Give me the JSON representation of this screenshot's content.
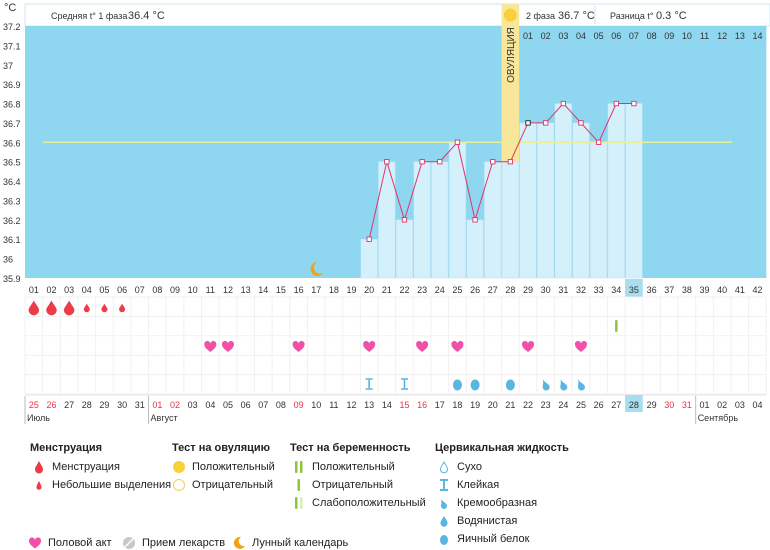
{
  "header": {
    "unit": "°C",
    "phase1_label": "Средняя t° 1 фаза",
    "phase1_value": "36.4 °C",
    "phase2_label": "2 фаза",
    "phase2_value": "36.7 °C",
    "diff_label": "Разница t°",
    "diff_value": "0.3 °C"
  },
  "ovulation_label": "ОВУЛЯЦИЯ",
  "ovulation_day": 28,
  "chart_data": {
    "type": "line",
    "ylim": [
      35.9,
      37.2
    ],
    "yticks": [
      "37.2",
      "37.1",
      "37",
      "36.9",
      "36.8",
      "36.7",
      "36.6",
      "36.5",
      "36.4",
      "36.3",
      "36.2",
      "36.1",
      "36",
      "35.9"
    ],
    "baseline": 36.6,
    "x_cycle_days": [
      "01",
      "02",
      "03",
      "04",
      "05",
      "06",
      "07",
      "08",
      "09",
      "10",
      "11",
      "12",
      "13",
      "14",
      "15",
      "16",
      "17",
      "18",
      "19",
      "20",
      "21",
      "22",
      "23",
      "24",
      "25",
      "26",
      "27",
      "28",
      "29",
      "30",
      "31",
      "32",
      "33",
      "34",
      "35",
      "36",
      "37",
      "38",
      "39",
      "40",
      "41",
      "42"
    ],
    "phase2_days": [
      "01",
      "02",
      "03",
      "04",
      "05",
      "06",
      "07",
      "08",
      "09",
      "10",
      "11",
      "12",
      "13",
      "14"
    ],
    "current_day": "35",
    "temperatures": [
      {
        "day": 20,
        "value": 36.1
      },
      {
        "day": 21,
        "value": 36.5
      },
      {
        "day": 22,
        "value": 36.2
      },
      {
        "day": 23,
        "value": 36.5
      },
      {
        "day": 24,
        "value": 36.5
      },
      {
        "day": 25,
        "value": 36.6
      },
      {
        "day": 26,
        "value": 36.2
      },
      {
        "day": 27,
        "value": 36.5
      },
      {
        "day": 28,
        "value": 36.5
      },
      {
        "day": 29,
        "value": 36.7
      },
      {
        "day": 30,
        "value": 36.7
      },
      {
        "day": 31,
        "value": 36.8
      },
      {
        "day": 32,
        "value": 36.7
      },
      {
        "day": 33,
        "value": 36.6
      },
      {
        "day": 34,
        "value": 36.8
      },
      {
        "day": 35,
        "value": 36.8
      }
    ],
    "moon_day": 17
  },
  "calendar": {
    "dates": [
      "25",
      "26",
      "27",
      "28",
      "29",
      "30",
      "31",
      "01",
      "02",
      "03",
      "04",
      "05",
      "06",
      "07",
      "08",
      "09",
      "10",
      "11",
      "12",
      "13",
      "14",
      "15",
      "16",
      "17",
      "18",
      "19",
      "20",
      "21",
      "22",
      "23",
      "24",
      "25",
      "26",
      "27",
      "28",
      "29",
      "30",
      "31",
      "01",
      "02",
      "03",
      "04"
    ],
    "red_dates": [
      1,
      2,
      8,
      9,
      16,
      22,
      23,
      37,
      38
    ],
    "today_index": 35,
    "months": [
      {
        "label": "Июль",
        "day": 1
      },
      {
        "label": "Август",
        "day": 8
      },
      {
        "label": "Сентябрь",
        "day": 39
      }
    ]
  },
  "symptoms": {
    "menstruation_heavy": [
      1,
      2,
      3
    ],
    "menstruation_light": [
      4,
      5,
      6
    ],
    "pregnancy_test_positive": [
      34
    ],
    "intercourse": [
      11,
      12,
      16,
      20,
      23,
      25,
      29,
      32
    ],
    "fluid_sticky": [
      20,
      22
    ],
    "fluid_eggwhite": [
      25,
      26,
      28
    ],
    "fluid_creamy": [
      30,
      31,
      32
    ]
  },
  "legend": {
    "menstruation_title": "Менструация",
    "menstruation": "Менструация",
    "light_spotting": "Небольшие выделения",
    "ovulation_title": "Тест на овуляцию",
    "ov_positive": "Положительный",
    "ov_negative": "Отрицательный",
    "pregnancy_title": "Тест на беременность",
    "pr_positive": "Положительный",
    "pr_negative": "Отрицательный",
    "pr_weak": "Слабоположительный",
    "fluid_title": "Цервикальная жидкость",
    "fl_dry": "Сухо",
    "fl_sticky": "Клейкая",
    "fl_creamy": "Кремообразная",
    "fl_watery": "Водянистая",
    "fl_eggwhite": "Яичный белок",
    "intercourse": "Половой акт",
    "medication": "Прием лекарств",
    "lunar": "Лунный календарь"
  },
  "colors": {
    "sky": "#8fd6f0",
    "bar": "#d4f0fb",
    "ovulation": "#f8e79a",
    "line": "#e0336a",
    "baseline": "#e8ef9a",
    "heart": "#f050a8",
    "drop": "#ee3b4a",
    "fluid": "#58b6e0",
    "test_green": "#8cc43c",
    "moon": "#f2a21a",
    "today": "#a8dcef"
  }
}
